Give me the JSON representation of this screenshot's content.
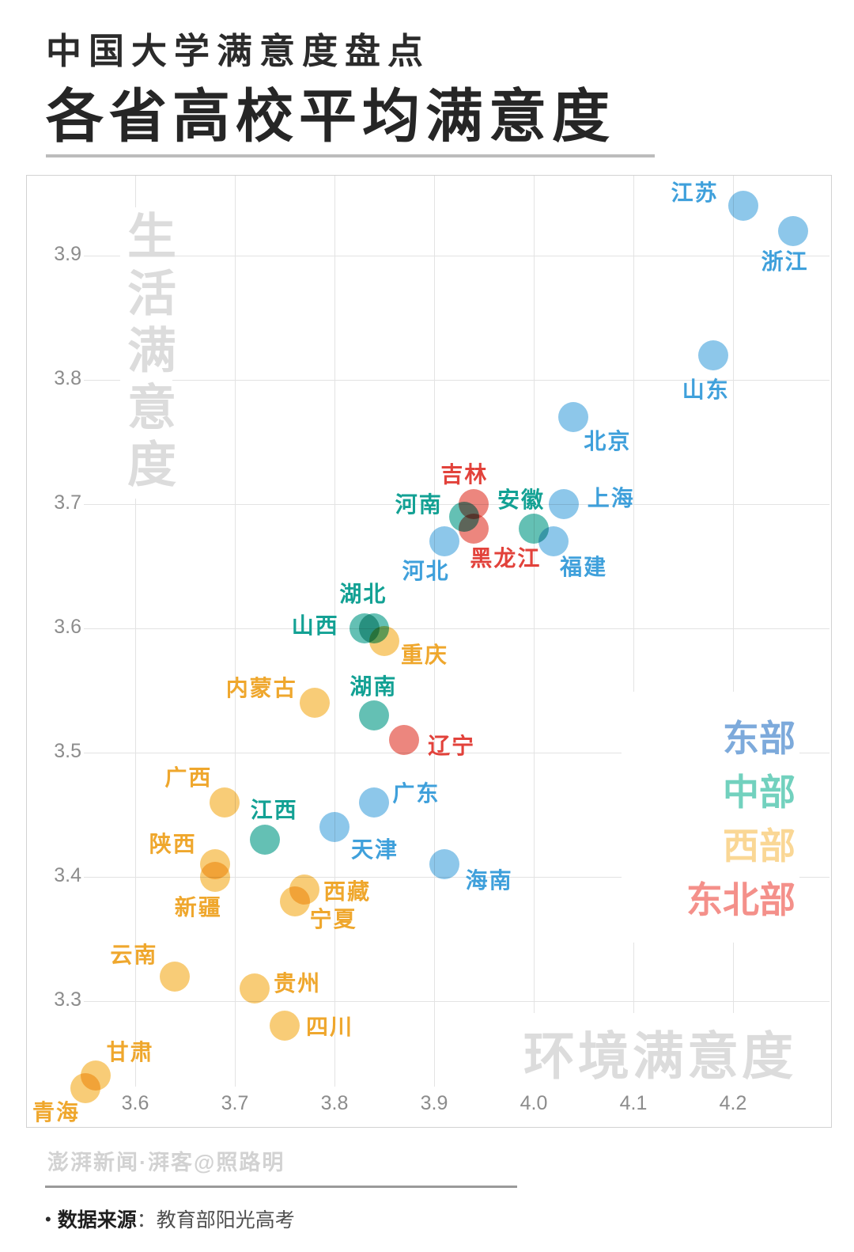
{
  "poster": {
    "kicker": "中国大学满意度盘点",
    "title": "各省高校平均满意度",
    "credit": "澎湃新闻·湃客@照路明",
    "source_bullet": "•",
    "source_label": "数据来源",
    "source_separator": "：",
    "source_value": "教育部阳光高考"
  },
  "chart_data": {
    "type": "scatter",
    "title": "各省高校平均满意度",
    "subtitle": "中国大学满意度盘点",
    "xlabel": "环境满意度",
    "ylabel": "生活满意度",
    "x_axis": {
      "label": "环境满意度",
      "ticks": [
        3.6,
        3.7,
        3.8,
        3.9,
        4.0,
        4.1,
        4.2
      ],
      "range": [
        3.49,
        4.32
      ],
      "grid": true
    },
    "y_axis": {
      "label": "生活满意度",
      "ticks": [
        3.9,
        3.8,
        3.7,
        3.6,
        3.5,
        3.4,
        3.3
      ],
      "range": [
        3.2,
        3.96
      ],
      "grid": true
    },
    "legend_position": "right-middle",
    "colors": {
      "east_bubble": "#87C4E9",
      "east_text": "#3FA0DB",
      "east_legend": "#7DAADB",
      "central_bubble": "#5BBDB0",
      "central_text": "#13A194",
      "central_legend": "#72D1BE",
      "west_bubble": "#F8CA70",
      "west_text": "#EFA72D",
      "west_legend": "#FAD795",
      "northeast_bubble": "#EB8077",
      "northeast_text": "#E2423B",
      "northeast_legend": "#F4908A"
    },
    "series": [
      {
        "name": "东部",
        "region": "east",
        "bubble_color": "#87C4E9",
        "label_color": "#3FA0DB",
        "legend_color": "#7DAADB",
        "points": [
          {
            "label": "江苏",
            "x": 4.21,
            "y": 3.94,
            "label_offset": [
              -61,
              -18
            ]
          },
          {
            "label": "浙江",
            "x": 4.26,
            "y": 3.92,
            "label_offset": [
              -10,
              37
            ]
          },
          {
            "label": "山东",
            "x": 4.18,
            "y": 3.82,
            "label_offset": [
              -9,
              42
            ]
          },
          {
            "label": "北京",
            "x": 4.04,
            "y": 3.77,
            "label_offset": [
              43,
              29
            ]
          },
          {
            "label": "上海",
            "x": 4.03,
            "y": 3.7,
            "label_offset": [
              60,
              -9
            ]
          },
          {
            "label": "福建",
            "x": 4.02,
            "y": 3.67,
            "label_offset": [
              38,
              31
            ]
          },
          {
            "label": "河北",
            "x": 3.91,
            "y": 3.67,
            "label_offset": [
              -23,
              36
            ]
          },
          {
            "label": "广东",
            "x": 3.84,
            "y": 3.46,
            "label_offset": [
              53,
              -13
            ]
          },
          {
            "label": "天津",
            "x": 3.8,
            "y": 3.44,
            "label_offset": [
              51,
              27
            ]
          },
          {
            "label": "海南",
            "x": 3.91,
            "y": 3.41,
            "label_offset": [
              57,
              19
            ]
          }
        ]
      },
      {
        "name": "中部",
        "region": "central",
        "bubble_color": "#5BBDB0",
        "label_color": "#13A194",
        "legend_color": "#72D1BE",
        "points": [
          {
            "label": "河南",
            "x": 3.93,
            "y": 3.69,
            "label_offset": [
              -57,
              -17
            ]
          },
          {
            "label": "安徽",
            "x": 4.0,
            "y": 3.68,
            "label_offset": [
              -16,
              -38
            ]
          },
          {
            "label": "湖北",
            "x": 3.84,
            "y": 3.6,
            "label_offset": [
              -14,
              -45
            ]
          },
          {
            "label": "山西",
            "x": 3.83,
            "y": 3.6,
            "label_offset": [
              -62,
              -5
            ]
          },
          {
            "label": "湖南",
            "x": 3.84,
            "y": 3.53,
            "label_offset": [
              -1,
              -38
            ]
          },
          {
            "label": "江西",
            "x": 3.73,
            "y": 3.43,
            "label_offset": [
              12,
              -39
            ]
          }
        ]
      },
      {
        "name": "西部",
        "region": "west",
        "bubble_color": "#F8CA70",
        "label_color": "#EFA72D",
        "legend_color": "#FAD795",
        "points": [
          {
            "label": "重庆",
            "x": 3.85,
            "y": 3.59,
            "label_offset": [
              51,
              16
            ]
          },
          {
            "label": "内蒙古",
            "x": 3.78,
            "y": 3.54,
            "label_offset": [
              -67,
              -20
            ]
          },
          {
            "label": "广西",
            "x": 3.69,
            "y": 3.46,
            "label_offset": [
              -46,
              -33
            ]
          },
          {
            "label": "陕西",
            "x": 3.68,
            "y": 3.41,
            "label_offset": [
              -53,
              -27
            ]
          },
          {
            "label": "新疆",
            "x": 3.68,
            "y": 3.4,
            "label_offset": [
              -21,
              37
            ]
          },
          {
            "label": "西藏",
            "x": 3.77,
            "y": 3.39,
            "label_offset": [
              54,
              1
            ]
          },
          {
            "label": "宁夏",
            "x": 3.76,
            "y": 3.38,
            "label_offset": [
              49,
              21
            ]
          },
          {
            "label": "云南",
            "x": 3.64,
            "y": 3.32,
            "label_offset": [
              -52,
              -29
            ]
          },
          {
            "label": "贵州",
            "x": 3.72,
            "y": 3.31,
            "label_offset": [
              54,
              -8
            ]
          },
          {
            "label": "四川",
            "x": 3.75,
            "y": 3.28,
            "label_offset": [
              57,
              0
            ]
          },
          {
            "label": "甘肃",
            "x": 3.56,
            "y": 3.24,
            "label_offset": [
              44,
              -31
            ]
          },
          {
            "label": "青海",
            "x": 3.55,
            "y": 3.23,
            "label_offset": [
              -37,
              29
            ]
          }
        ]
      },
      {
        "name": "东北部",
        "region": "northeast",
        "bubble_color": "#EB8077",
        "label_color": "#E2423B",
        "legend_color": "#F4908A",
        "points": [
          {
            "label": "吉林",
            "x": 3.94,
            "y": 3.7,
            "label_offset": [
              -12,
              -39
            ]
          },
          {
            "label": "黑龙江",
            "x": 3.94,
            "y": 3.68,
            "label_offset": [
              40,
              36
            ]
          },
          {
            "label": "辽宁",
            "x": 3.87,
            "y": 3.51,
            "label_offset": [
              60,
              6
            ]
          }
        ]
      }
    ]
  }
}
